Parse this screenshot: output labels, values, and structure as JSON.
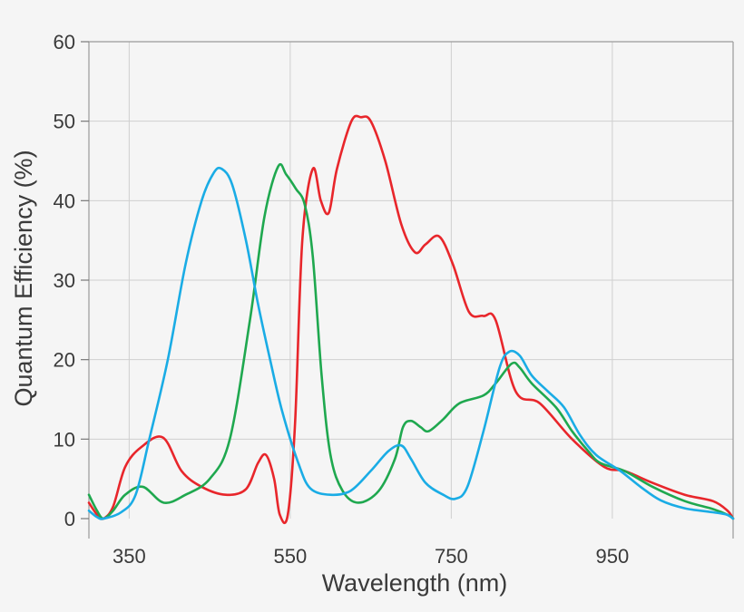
{
  "chart_data": {
    "type": "line",
    "title": "",
    "xlabel": "Wavelength (nm)",
    "ylabel": "Quantum Efficiency (%)",
    "xlim": [
      300,
      1100
    ],
    "ylim": [
      0,
      60
    ],
    "xticks": [
      350,
      550,
      750,
      950
    ],
    "yticks": [
      0,
      10,
      20,
      30,
      40,
      50,
      60
    ],
    "x_gridlines": [
      350,
      550,
      750,
      950
    ],
    "grid": true,
    "legend": "none",
    "series": [
      {
        "name": "red",
        "color": "#e8262b",
        "points": [
          [
            300,
            2
          ],
          [
            310,
            0.5
          ],
          [
            318,
            0
          ],
          [
            330,
            1.5
          ],
          [
            345,
            6.5
          ],
          [
            365,
            9
          ],
          [
            392,
            10.2
          ],
          [
            415,
            6
          ],
          [
            440,
            4
          ],
          [
            470,
            3
          ],
          [
            495,
            3.7
          ],
          [
            510,
            7
          ],
          [
            520,
            8
          ],
          [
            530,
            5
          ],
          [
            537,
            0.5
          ],
          [
            547,
            0.5
          ],
          [
            556,
            12
          ],
          [
            565,
            35
          ],
          [
            578,
            44
          ],
          [
            588,
            40
          ],
          [
            598,
            38.5
          ],
          [
            608,
            44
          ],
          [
            626,
            50
          ],
          [
            638,
            50.5
          ],
          [
            650,
            50
          ],
          [
            668,
            45
          ],
          [
            688,
            37
          ],
          [
            705,
            33.5
          ],
          [
            718,
            34.5
          ],
          [
            735,
            35.5
          ],
          [
            752,
            32
          ],
          [
            772,
            26
          ],
          [
            790,
            25.5
          ],
          [
            805,
            25
          ],
          [
            830,
            16
          ],
          [
            860,
            14.5
          ],
          [
            900,
            10
          ],
          [
            940,
            6.5
          ],
          [
            965,
            6
          ],
          [
            1000,
            4.5
          ],
          [
            1040,
            3
          ],
          [
            1075,
            2.2
          ],
          [
            1093,
            1
          ],
          [
            1100,
            0
          ]
        ]
      },
      {
        "name": "green",
        "color": "#1fa84f",
        "points": [
          [
            300,
            3
          ],
          [
            310,
            1
          ],
          [
            318,
            0
          ],
          [
            330,
            1
          ],
          [
            345,
            3
          ],
          [
            367,
            4
          ],
          [
            393,
            2
          ],
          [
            420,
            3
          ],
          [
            450,
            5
          ],
          [
            475,
            10
          ],
          [
            500,
            25
          ],
          [
            518,
            38
          ],
          [
            535,
            44.3
          ],
          [
            545,
            43.3
          ],
          [
            557,
            41.5
          ],
          [
            568,
            39.5
          ],
          [
            578,
            33
          ],
          [
            589,
            18
          ],
          [
            600,
            8
          ],
          [
            615,
            3.5
          ],
          [
            635,
            2
          ],
          [
            660,
            3.5
          ],
          [
            680,
            7.5
          ],
          [
            690,
            11.5
          ],
          [
            700,
            12.3
          ],
          [
            712,
            11.5
          ],
          [
            722,
            11
          ],
          [
            740,
            12.5
          ],
          [
            760,
            14.5
          ],
          [
            790,
            15.5
          ],
          [
            805,
            17
          ],
          [
            825,
            19.5
          ],
          [
            835,
            19
          ],
          [
            850,
            17
          ],
          [
            880,
            14
          ],
          [
            900,
            11
          ],
          [
            920,
            8.5
          ],
          [
            935,
            7
          ],
          [
            965,
            6
          ],
          [
            1000,
            4
          ],
          [
            1040,
            2.2
          ],
          [
            1075,
            1.2
          ],
          [
            1095,
            0.4
          ],
          [
            1100,
            0
          ]
        ]
      },
      {
        "name": "blue",
        "color": "#1aace5",
        "points": [
          [
            300,
            1
          ],
          [
            310,
            0.2
          ],
          [
            318,
            0
          ],
          [
            340,
            0.8
          ],
          [
            358,
            3
          ],
          [
            375,
            10
          ],
          [
            398,
            20
          ],
          [
            420,
            32
          ],
          [
            440,
            40
          ],
          [
            455,
            43.5
          ],
          [
            465,
            44
          ],
          [
            478,
            42
          ],
          [
            495,
            35
          ],
          [
            510,
            27
          ],
          [
            525,
            20
          ],
          [
            540,
            13.5
          ],
          [
            560,
            7
          ],
          [
            575,
            3.8
          ],
          [
            600,
            3
          ],
          [
            625,
            3.5
          ],
          [
            650,
            6
          ],
          [
            672,
            8.5
          ],
          [
            688,
            9.2
          ],
          [
            700,
            7.5
          ],
          [
            718,
            4.5
          ],
          [
            740,
            3
          ],
          [
            755,
            2.5
          ],
          [
            770,
            4
          ],
          [
            790,
            11
          ],
          [
            810,
            19
          ],
          [
            822,
            21
          ],
          [
            835,
            20.5
          ],
          [
            850,
            18
          ],
          [
            870,
            16
          ],
          [
            890,
            14
          ],
          [
            910,
            10.5
          ],
          [
            930,
            8
          ],
          [
            960,
            6
          ],
          [
            985,
            4
          ],
          [
            1010,
            2.3
          ],
          [
            1040,
            1.3
          ],
          [
            1075,
            0.8
          ],
          [
            1092,
            0.5
          ],
          [
            1100,
            0
          ]
        ]
      }
    ]
  }
}
